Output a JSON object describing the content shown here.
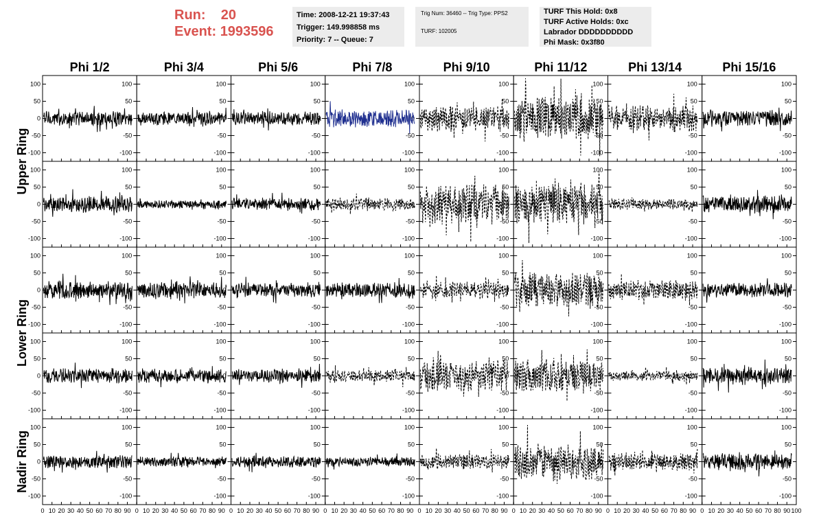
{
  "header": {
    "run_label": "Run:",
    "run_value": "20",
    "event_label": "Event:",
    "event_value": "1993596"
  },
  "info_time": {
    "time": "Time: 2008-12-21 19:37:43",
    "trigger": "Trigger: 149.998858 ms",
    "priority": "Priority: 7 -- Queue: 7"
  },
  "info_trig": {
    "trig": "Trig Num: 36460 -- Trig Type: PPS2",
    "turf": "TURF: 102005"
  },
  "info_turf": {
    "this_hold": "TURF This Hold: 0x8",
    "active_holds": "TURF Active Holds: 0xc",
    "labrador": "Labrador DDDDDDDDDD",
    "phi_mask": "Phi Mask: 0x3f80"
  },
  "chart_data": {
    "type": "line",
    "columns": [
      "Phi 1/2",
      "Phi 3/4",
      "Phi 5/6",
      "Phi 7/8",
      "Phi 9/10",
      "Phi 11/12",
      "Phi 13/14",
      "Phi 15/16"
    ],
    "rows": [
      "Upper Ring",
      "Upper Ring",
      "Lower Ring",
      "Lower Ring",
      "Nadir Ring"
    ],
    "row_labels": [
      "Upper Ring",
      "Lower Ring",
      "Nadir Ring"
    ],
    "xlim": [
      0,
      100
    ],
    "ylim": [
      -125,
      125
    ],
    "x_ticks": [
      "0",
      "10",
      "20",
      "30",
      "40",
      "50",
      "60",
      "70",
      "80",
      "90",
      "100"
    ],
    "y_ticks": [
      "100",
      "50",
      "0",
      "-50",
      "-100"
    ],
    "colors": {
      "solid": "#000000",
      "highlight": "#1f2f8f"
    },
    "amplitudes": [
      [
        18,
        16,
        17,
        22,
        30,
        55,
        32,
        20
      ],
      [
        20,
        10,
        16,
        16,
        48,
        52,
        14,
        22
      ],
      [
        22,
        20,
        18,
        18,
        20,
        45,
        24,
        18
      ],
      [
        18,
        18,
        16,
        14,
        40,
        42,
        12,
        22
      ],
      [
        16,
        12,
        14,
        12,
        18,
        45,
        22,
        20
      ]
    ],
    "styles": [
      [
        "solid",
        "solid",
        "solid",
        "highlight",
        "dashed",
        "dashed",
        "dashed",
        "solid"
      ],
      [
        "solid",
        "solid",
        "solid",
        "dashed",
        "dashed",
        "dashed",
        "dashed",
        "solid"
      ],
      [
        "solid",
        "solid",
        "solid",
        "solid",
        "dashed",
        "dashed",
        "dashed",
        "solid"
      ],
      [
        "solid",
        "solid",
        "solid",
        "dashed",
        "dashed",
        "dashed",
        "dashed",
        "solid"
      ],
      [
        "solid",
        "solid",
        "solid",
        "solid",
        "dashed",
        "dashed",
        "dashed",
        "solid"
      ]
    ]
  }
}
